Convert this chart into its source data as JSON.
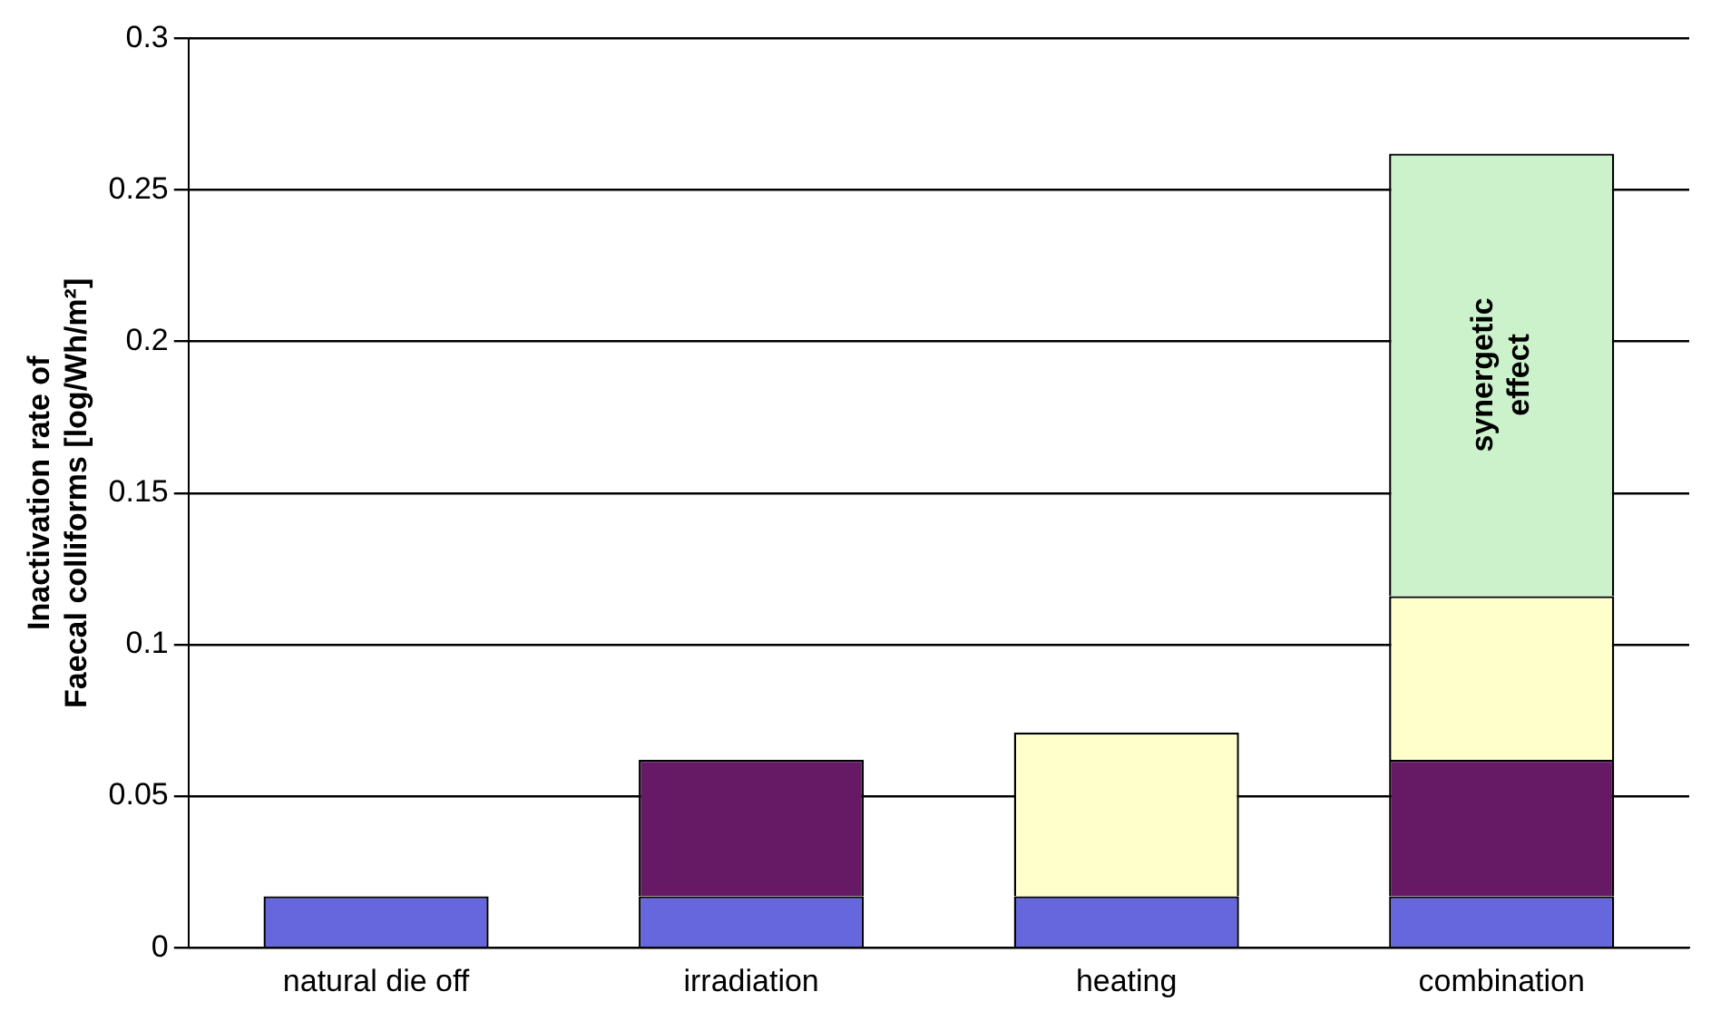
{
  "chart_data": {
    "type": "bar",
    "stacked": true,
    "ylabel": "Inactivation rate of\nFaecal colliforms [log/Wh/m²]",
    "categories": [
      "natural die off",
      "irradiation",
      "heating",
      "combination"
    ],
    "series": [
      {
        "color": "#6666dd",
        "values": [
          0.017,
          0.017,
          0.017,
          0.017
        ]
      },
      {
        "color": "#661a66",
        "values": [
          null,
          0.045,
          null,
          0.045
        ]
      },
      {
        "color": "#ffffcc",
        "values": [
          null,
          null,
          0.054,
          0.054
        ]
      },
      {
        "name": "synergetic effect",
        "color": "#ccf2cc",
        "values": [
          null,
          null,
          null,
          0.146
        ]
      }
    ],
    "ylim": [
      0,
      0.3
    ],
    "yticks": [
      0,
      0.05,
      0.1,
      0.15,
      0.2,
      0.25,
      0.3
    ],
    "grid": "y",
    "legend": false
  }
}
